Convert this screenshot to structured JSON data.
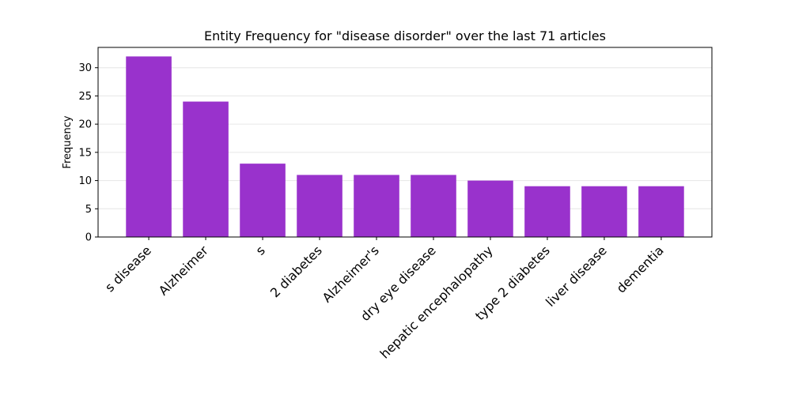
{
  "chart_data": {
    "type": "bar",
    "title": "Entity Frequency for \"disease disorder\" over the last 71 articles",
    "xlabel": "",
    "ylabel": "Frequency",
    "categories": [
      "s disease",
      "Alzheimer",
      "s",
      "2 diabetes",
      "Alzheimer's",
      "dry eye disease",
      "hepatic encephalopathy",
      "type 2 diabetes",
      "liver disease",
      "dementia"
    ],
    "values": [
      32,
      24,
      13,
      11,
      11,
      11,
      10,
      9,
      9,
      9
    ],
    "ylim": [
      0,
      33.6
    ],
    "yticks": [
      0,
      5,
      10,
      15,
      20,
      25,
      30
    ],
    "grid": "y",
    "bar_color": "#9932cc"
  }
}
